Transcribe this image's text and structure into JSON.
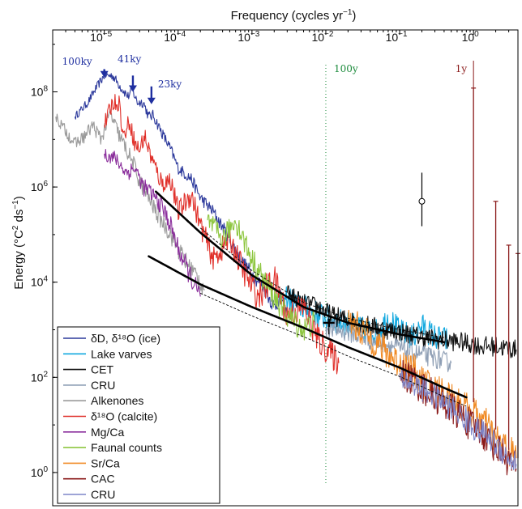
{
  "chart_data": {
    "type": "line",
    "title": "",
    "xlabel": "Frequency (cycles yr",
    "xlabel_sup": "−1",
    "xlabel_tail": ")",
    "ylabel": "Energy (°C",
    "ylabel_sup1": "2",
    "ylabel_mid": " ds",
    "ylabel_sup2": "−1",
    "ylabel_tail": ")",
    "x_scale": "log",
    "y_scale": "log",
    "xlim": [
      2e-06,
      4
    ],
    "ylim": [
      0.2,
      2000000000.0
    ],
    "grid": false,
    "legend_position": "bottom-left",
    "x_ticks": [
      {
        "value": 1e-05,
        "base": "10",
        "exp": "−5"
      },
      {
        "value": 0.0001,
        "base": "10",
        "exp": "−4"
      },
      {
        "value": 0.001,
        "base": "10",
        "exp": "−3"
      },
      {
        "value": 0.01,
        "base": "10",
        "exp": "−2"
      },
      {
        "value": 0.1,
        "base": "10",
        "exp": "−1"
      },
      {
        "value": 1,
        "base": "10",
        "exp": "0"
      }
    ],
    "y_ticks": [
      {
        "value": 1,
        "base": "10",
        "exp": "0"
      },
      {
        "value": 100,
        "base": "10",
        "exp": "2"
      },
      {
        "value": 10000,
        "base": "10",
        "exp": "4"
      },
      {
        "value": 1000000,
        "base": "10",
        "exp": "6"
      },
      {
        "value": 100000000,
        "base": "10",
        "exp": "8"
      }
    ],
    "annotations": [
      {
        "text": "100ky",
        "x": 1e-05,
        "arrow_top_y": 300000000.0,
        "arrow_tip_y": 200000000.0,
        "color": "#1f2fa0"
      },
      {
        "text": "41ky",
        "x": 2.44e-05,
        "arrow_top_y": 220000000.0,
        "arrow_tip_y": 100000000.0,
        "color": "#1f2fa0"
      },
      {
        "text": "23ky",
        "x": 4.35e-05,
        "arrow_top_y": 130000000.0,
        "arrow_tip_y": 55000000.0,
        "color": "#1f2fa0"
      },
      {
        "text": "100y",
        "x": 0.01,
        "color": "#1a8a3a"
      },
      {
        "text": "1y",
        "x": 1,
        "color": "#8b1a1a"
      }
    ],
    "error_points": [
      {
        "x": 0.2,
        "y": 500000,
        "y_low": 150000,
        "y_high": 2000000,
        "marker": "open-circle"
      },
      {
        "x": 0.011,
        "y": 1400,
        "y_low": 800,
        "y_high": 2600,
        "marker": "plus"
      }
    ],
    "fit_lines": [
      {
        "name": "",
        "x": [
          5e-05,
          0.0002,
          0.001,
          0.005,
          0.02,
          0.1,
          0.4
        ],
        "y": [
          800000,
          110000,
          14000,
          3000,
          1400,
          800,
          550
        ]
      },
      {
        "name": "",
        "x": [
          4e-05,
          0.0002,
          0.001,
          0.005,
          0.02,
          0.1,
          0.4,
          0.8
        ],
        "y": [
          35000,
          9000,
          3000,
          1100,
          430,
          160,
          60,
          38
        ]
      }
    ],
    "series": [
      {
        "name": "δD, δ¹⁸O (ice)",
        "color": "#2d3a9c",
        "x": [
          4e-06,
          6e-06,
          8e-06,
          1e-05,
          1.3e-05,
          1.7e-05,
          2.1e-05,
          2.4e-05,
          2.8e-05,
          3.4e-05,
          4e-05,
          4.6e-05,
          6e-05,
          8e-05,
          0.0001,
          0.00015,
          0.0002,
          0.0003,
          0.0005,
          0.0007,
          0.001,
          0.0015,
          0.002,
          0.0025,
          0.003
        ],
        "y": [
          30000000.0,
          60000000.0,
          130000000.0,
          220000000.0,
          220000000.0,
          120000000.0,
          80000000.0,
          110000000.0,
          60000000.0,
          60000000.0,
          30000000.0,
          32000000.0,
          14000000.0,
          6000000.0,
          2500000.0,
          1500000.0,
          600000.0,
          300000.0,
          80000.0,
          30000.0,
          15000.0,
          7000.0,
          3000.0,
          5000.0,
          2000.0
        ],
        "noise": 0.12
      },
      {
        "name": "Lake varves",
        "color": "#12a8df",
        "x": [
          0.0028,
          0.004,
          0.006,
          0.01,
          0.015,
          0.02,
          0.03,
          0.05,
          0.07,
          0.1,
          0.15,
          0.2,
          0.3,
          0.45
        ],
        "y": [
          5000,
          3500,
          2500,
          1800,
          1500,
          1300,
          1000,
          900,
          1800,
          900,
          700,
          1200,
          700,
          600
        ],
        "noise": 0.2
      },
      {
        "name": "CET",
        "color": "#111111",
        "x": [
          0.003,
          0.005,
          0.008,
          0.012,
          0.02,
          0.04,
          0.07,
          0.1,
          0.2,
          0.4,
          0.7,
          0.95,
          1.3,
          2,
          3,
          3.8
        ],
        "y": [
          6000,
          3500,
          3000,
          2000,
          1600,
          1200,
          1000,
          900,
          700,
          600,
          550,
          500,
          450,
          450,
          400,
          380
        ],
        "noise": 0.15
      },
      {
        "name": "CRU",
        "color": "#8f9fb5",
        "x": [
          0.01,
          0.02,
          0.04,
          0.07,
          0.1,
          0.2,
          0.3,
          0.5
        ],
        "y": [
          1100,
          900,
          600,
          500,
          400,
          300,
          250,
          200
        ],
        "noise": 0.15
      },
      {
        "name": "Alkenones",
        "color": "#9a9a9a",
        "x": [
          2.2e-06,
          3e-06,
          4e-06,
          5.5e-06,
          7e-06,
          9e-06,
          1.2e-05,
          1.6e-05,
          2e-05,
          2.5e-05,
          3e-05,
          4e-05,
          5e-05,
          6e-05,
          8e-05,
          0.0001,
          0.00013,
          0.00017,
          0.00023
        ],
        "y": [
          30000000.0,
          15000000.0,
          8000000.0,
          12000000.0,
          20000000.0,
          10000000.0,
          35000000.0,
          12000000.0,
          6000000.0,
          3000000.0,
          1300000.0,
          600000.0,
          300000.0,
          200000.0,
          100000.0,
          50000.0,
          25000.0,
          15000.0,
          7000.0
        ],
        "noise": 0.2
      },
      {
        "name": "δ¹⁸O (calcite)",
        "color": "#e0302a",
        "x": [
          1e-05,
          1.3e-05,
          1.6e-05,
          1.8e-05,
          2.2e-05,
          2.6e-05,
          3e-05,
          3.5e-05,
          4.5e-05,
          6e-05,
          8e-05,
          0.0001,
          0.00015,
          0.0002,
          0.0003,
          0.0005,
          0.0008,
          0.0012,
          0.002,
          0.003,
          0.005,
          0.008,
          0.012,
          0.015
        ],
        "y": [
          20000000.0,
          60000000.0,
          60000000.0,
          11000000.0,
          25000000.0,
          8000000.0,
          6000000.0,
          12000000.0,
          3500000.0,
          1200000.0,
          1400000.0,
          300000.0,
          700000.0,
          160000.0,
          30000.0,
          80000.0,
          15000.0,
          5000.0,
          12000.0,
          2000.0,
          3000.0,
          600.0,
          300,
          200
        ],
        "noise": 0.22
      },
      {
        "name": "Mg/Ca",
        "color": "#8b2f9c",
        "x": [
          1e-05,
          1.4e-05,
          2e-05,
          2.6e-05,
          3.4e-05,
          4.5e-05,
          6e-05,
          8e-05,
          0.0001,
          0.00013,
          0.00017,
          0.0002
        ],
        "y": [
          5000000.0,
          4000000.0,
          2000000.0,
          2500000.0,
          1000000.0,
          700000.0,
          400000.0,
          150000.0,
          50000.0,
          20000.0,
          8000.0,
          5000.0
        ],
        "noise": 0.2
      },
      {
        "name": "Faunal counts",
        "color": "#8dc63f",
        "x": [
          0.00025,
          0.0004,
          0.0006,
          0.001,
          0.0015,
          0.002,
          0.003,
          0.005,
          0.007
        ],
        "y": [
          200000.0,
          80000.0,
          200000.0,
          30000.0,
          10000.0,
          5000.0,
          2000.0,
          1000.0,
          1500
        ],
        "noise": 0.2
      },
      {
        "name": "Sr/Ca",
        "color": "#f08a24",
        "x": [
          0.02,
          0.03,
          0.05,
          0.07,
          0.1,
          0.15,
          0.2,
          0.3,
          0.5,
          0.7,
          1,
          1.5,
          2,
          3,
          3.8
        ],
        "y": [
          1500,
          1000,
          500,
          300,
          200,
          150,
          80,
          60,
          40,
          25,
          18,
          10,
          5,
          3,
          2
        ],
        "noise": 0.25
      },
      {
        "name": "CAC",
        "color": "#8b1a1a",
        "x": [
          0.1,
          0.15,
          0.2,
          0.3,
          0.5,
          0.7,
          0.9,
          1.2,
          1.6,
          2,
          2.5,
          3,
          3.8
        ],
        "y": [
          120,
          90,
          60,
          40,
          22,
          15,
          10,
          8,
          5,
          3.5,
          2.5,
          1.8,
          1.2
        ],
        "noise": 0.25
      },
      {
        "name": "CRU",
        "color": "#7f86c8",
        "x": [
          0.1,
          0.2,
          0.4,
          0.7,
          1,
          1.5,
          2,
          3,
          3.8
        ],
        "y": [
          100,
          60,
          30,
          15,
          9,
          6,
          4,
          2,
          1.5
        ],
        "noise": 0.2
      }
    ],
    "spikes": [
      {
        "x": 1,
        "y_base": 30,
        "y_top": 120000000.0,
        "color": "#8b1a1a"
      },
      {
        "x": 2,
        "y_base": 8,
        "y_top": 500000.0,
        "color": "#8b1a1a"
      },
      {
        "x": 3,
        "y_base": 3,
        "y_top": 60000.0,
        "color": "#8b1a1a"
      },
      {
        "x": 4,
        "y_base": 2,
        "y_top": 40000.0,
        "color": "#8b1a1a"
      }
    ]
  }
}
